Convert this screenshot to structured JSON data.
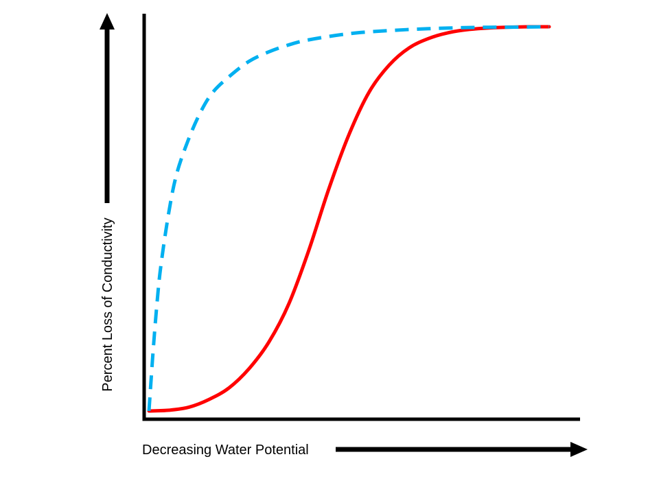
{
  "chart_data": {
    "type": "line",
    "title": "",
    "xlabel": "Decreasing Water Potential",
    "ylabel": "Percent Loss of Conductivity",
    "xlim": [
      0,
      100
    ],
    "ylim": [
      0,
      100
    ],
    "grid": false,
    "legend": "none",
    "series": [
      {
        "color": "#ff0000",
        "line_style": "solid",
        "x": [
          0,
          5,
          10,
          15,
          20,
          25,
          30,
          35,
          40,
          45,
          50,
          55,
          60,
          65,
          70,
          75,
          80,
          85,
          90,
          95,
          100
        ],
        "y": [
          0,
          0.2,
          1,
          3,
          6,
          11,
          18,
          28,
          42,
          58,
          72,
          83,
          90,
          94.5,
          97,
          98.5,
          99.3,
          99.7,
          99.9,
          100,
          100
        ]
      },
      {
        "color": "#00b0f0",
        "line_style": "dashed",
        "x": [
          0,
          1,
          2,
          3,
          5,
          7,
          10,
          13,
          16,
          20,
          25,
          30,
          35,
          40,
          50,
          60,
          70,
          80,
          90,
          100
        ],
        "y": [
          0,
          15,
          28,
          38,
          52,
          62,
          71,
          78,
          83,
          87,
          91,
          93.5,
          95.3,
          96.6,
          98.2,
          99,
          99.5,
          99.8,
          99.9,
          100
        ]
      }
    ]
  }
}
